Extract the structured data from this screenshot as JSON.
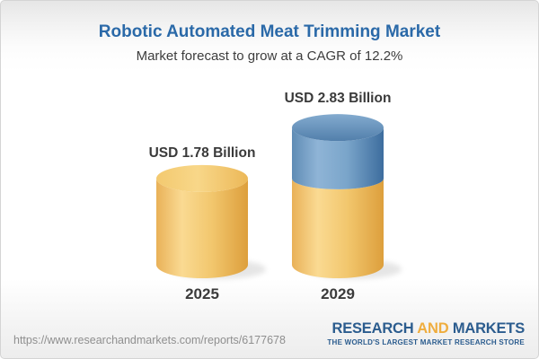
{
  "header": {
    "title": "Robotic Automated Meat Trimming Market",
    "subtitle": "Market forecast to grow at a CAGR of 12.2%"
  },
  "chart_data": {
    "type": "bar",
    "style": "3d-cylinder",
    "unit": "USD Billion",
    "cagr_percent": 12.2,
    "categories": [
      "2025",
      "2029"
    ],
    "values": [
      1.78,
      2.83
    ],
    "bars": [
      {
        "category": "2025",
        "value": 1.78,
        "label": "USD 1.78 Billion",
        "segments": [
          {
            "value": 1.78,
            "color": "gold"
          }
        ]
      },
      {
        "category": "2029",
        "value": 2.83,
        "label": "USD 2.83 Billion",
        "segments": [
          {
            "value": 1.78,
            "color": "gold"
          },
          {
            "value": 1.05,
            "color": "blue"
          }
        ]
      }
    ],
    "colors": {
      "gold": "#F2C76E",
      "blue": "#5E8CB8"
    },
    "legend_position": "none",
    "grid": false
  },
  "footer": {
    "report_url": "https://www.researchandmarkets.com/reports/6177678",
    "logo": {
      "word1": "RESEARCH",
      "word2": "AND",
      "word3": "MARKETS",
      "tagline": "THE WORLD'S LARGEST MARKET RESEARCH STORE"
    }
  }
}
